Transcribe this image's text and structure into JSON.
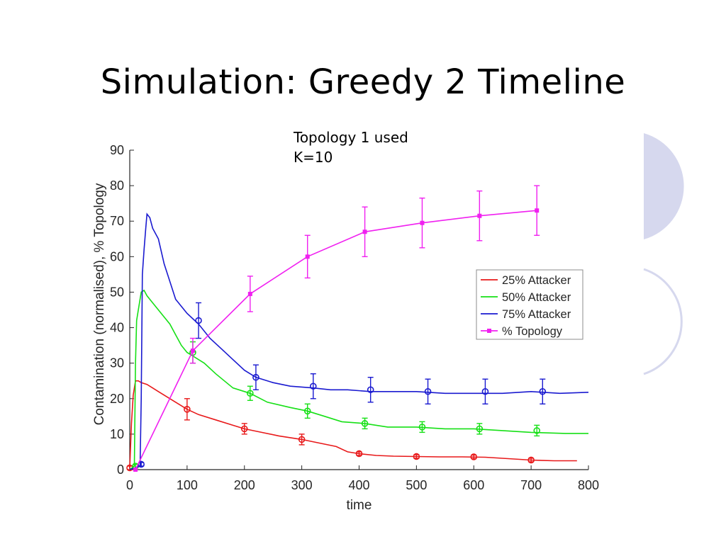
{
  "slide": {
    "title": "Simulation: Greedy 2 Timeline",
    "notes": [
      "Topology 1 used",
      "K=10"
    ]
  },
  "colors": {
    "red": "#e8191a",
    "green": "#16e016",
    "blue": "#1a1ad0",
    "magenta": "#f020f0",
    "decor": "#d6d8ee"
  },
  "chart_data": {
    "type": "line",
    "xlabel": "time",
    "ylabel": "Contamination (normalised),  % Topology",
    "xlim": [
      0,
      800
    ],
    "ylim": [
      0,
      90
    ],
    "xticks": [
      0,
      100,
      200,
      300,
      400,
      500,
      600,
      700,
      800
    ],
    "yticks": [
      0,
      10,
      20,
      30,
      40,
      50,
      60,
      70,
      80,
      90
    ],
    "grid": false,
    "legend_position": "right",
    "series": [
      {
        "name": "25% Attacker",
        "color": "#e8191a",
        "x": [
          0,
          3,
          6,
          10,
          15,
          20,
          30,
          40,
          50,
          60,
          70,
          80,
          90,
          100,
          120,
          150,
          180,
          200,
          230,
          260,
          300,
          330,
          360,
          380,
          400,
          430,
          460,
          500,
          540,
          580,
          620,
          650,
          700,
          740,
          780
        ],
        "y": [
          0.5,
          13,
          21,
          25,
          25,
          24.5,
          24,
          23,
          22,
          21,
          20,
          19,
          18,
          17,
          15.5,
          14,
          12.5,
          11.5,
          10.5,
          9.5,
          8.5,
          7.5,
          6.5,
          5,
          4.5,
          4,
          3.8,
          3.7,
          3.6,
          3.6,
          3.5,
          3.2,
          2.7,
          2.5,
          2.5
        ],
        "error_bars": [
          {
            "x": 0,
            "y": 0.5,
            "err": 0.5
          },
          {
            "x": 100,
            "y": 17,
            "err": 3
          },
          {
            "x": 200,
            "y": 11.5,
            "err": 1.5
          },
          {
            "x": 300,
            "y": 8.5,
            "err": 1.5
          },
          {
            "x": 400,
            "y": 4.5,
            "err": 0.5
          },
          {
            "x": 500,
            "y": 3.7,
            "err": 0.5
          },
          {
            "x": 600,
            "y": 3.6,
            "err": 0.5
          },
          {
            "x": 700,
            "y": 2.7,
            "err": 0.5
          }
        ]
      },
      {
        "name": "50% Attacker",
        "color": "#16e016",
        "x": [
          0,
          8,
          10,
          12,
          15,
          20,
          25,
          30,
          40,
          50,
          60,
          70,
          80,
          90,
          100,
          110,
          130,
          150,
          180,
          210,
          240,
          280,
          310,
          340,
          370,
          410,
          450,
          500,
          550,
          600,
          650,
          700,
          760,
          800
        ],
        "y": [
          0,
          1,
          30,
          42,
          45,
          50,
          50.5,
          49,
          47,
          45,
          43,
          41,
          38,
          35,
          33,
          32,
          30,
          27,
          23,
          21.5,
          19,
          17.5,
          16.5,
          15,
          13.5,
          13,
          12,
          12,
          11.5,
          11.5,
          11,
          10.5,
          10.2,
          10.2
        ],
        "error_bars": [
          {
            "x": 10,
            "y": 1,
            "err": 0.5
          },
          {
            "x": 110,
            "y": 33,
            "err": 3
          },
          {
            "x": 210,
            "y": 21.5,
            "err": 2
          },
          {
            "x": 310,
            "y": 16.5,
            "err": 2
          },
          {
            "x": 410,
            "y": 13,
            "err": 1.5
          },
          {
            "x": 510,
            "y": 12,
            "err": 1.5
          },
          {
            "x": 610,
            "y": 11.5,
            "err": 1.5
          },
          {
            "x": 710,
            "y": 11,
            "err": 1.5
          }
        ]
      },
      {
        "name": "75% Attacker",
        "color": "#1a1ad0",
        "x": [
          0,
          18,
          20,
          22,
          25,
          28,
          30,
          35,
          40,
          50,
          60,
          70,
          80,
          90,
          100,
          110,
          120,
          140,
          160,
          180,
          200,
          220,
          250,
          280,
          320,
          350,
          380,
          420,
          450,
          500,
          550,
          600,
          650,
          700,
          750,
          800
        ],
        "y": [
          0,
          1,
          20,
          55,
          62,
          68,
          72,
          71,
          68,
          65,
          58,
          53,
          48,
          46,
          44,
          42.5,
          41,
          37,
          34,
          31,
          28,
          26,
          24.5,
          23.5,
          23,
          22.5,
          22.5,
          22,
          22,
          22,
          21.5,
          21.5,
          21.5,
          22,
          21.5,
          21.8
        ],
        "error_bars": [
          {
            "x": 20,
            "y": 1.5,
            "err": 0.5
          },
          {
            "x": 120,
            "y": 42,
            "err": 5
          },
          {
            "x": 220,
            "y": 26,
            "err": 3.5
          },
          {
            "x": 320,
            "y": 23.5,
            "err": 3.5
          },
          {
            "x": 420,
            "y": 22.5,
            "err": 3.5
          },
          {
            "x": 520,
            "y": 22,
            "err": 3.5
          },
          {
            "x": 620,
            "y": 22,
            "err": 3.5
          },
          {
            "x": 720,
            "y": 22,
            "err": 3.5
          }
        ]
      },
      {
        "name": "% Topology",
        "color": "#f020f0",
        "marker": "square",
        "x": [
          10,
          110,
          210,
          310,
          410,
          510,
          610,
          710
        ],
        "y": [
          0,
          33.5,
          49.5,
          60,
          67,
          69.5,
          71.5,
          73
        ],
        "error_bars": [
          {
            "x": 10,
            "y": 0,
            "err": 0
          },
          {
            "x": 110,
            "y": 33.5,
            "err": 3.5
          },
          {
            "x": 210,
            "y": 49.5,
            "err": 5
          },
          {
            "x": 310,
            "y": 60,
            "err": 6
          },
          {
            "x": 410,
            "y": 67,
            "err": 7
          },
          {
            "x": 510,
            "y": 69.5,
            "err": 7
          },
          {
            "x": 610,
            "y": 71.5,
            "err": 7
          },
          {
            "x": 710,
            "y": 73,
            "err": 7
          }
        ]
      }
    ]
  }
}
